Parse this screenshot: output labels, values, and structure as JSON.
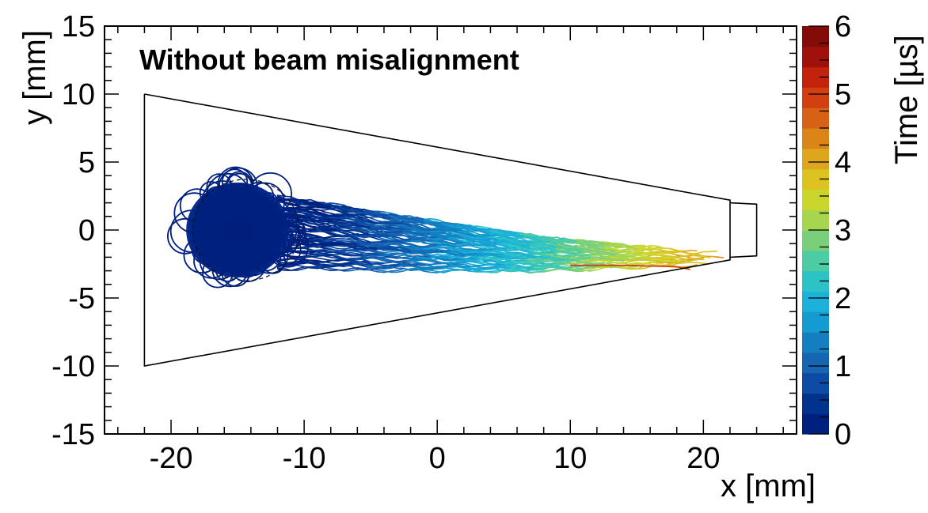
{
  "chart_data": {
    "type": "scatter",
    "title": "",
    "annotation": "Without beam misalignment",
    "xlabel": "x [mm]",
    "ylabel": "y [mm]",
    "colorbar_label": "Time [µs]",
    "xlim": [
      -25,
      27
    ],
    "ylim": [
      -15,
      15
    ],
    "zlim": [
      0,
      6
    ],
    "x_ticks": [
      -20,
      -10,
      0,
      10,
      20
    ],
    "x_tick_labels": [
      "-20",
      "-10",
      "0",
      "10",
      "20"
    ],
    "y_ticks": [
      -15,
      -10,
      -5,
      0,
      5,
      10,
      15
    ],
    "y_tick_labels": [
      "-15",
      "-10",
      "-5",
      "0",
      "5",
      "10",
      "15"
    ],
    "z_ticks": [
      0,
      1,
      2,
      3,
      4,
      5,
      6
    ],
    "z_tick_labels": [
      "0",
      "1",
      "2",
      "3",
      "4",
      "5",
      "6"
    ],
    "colormap": [
      "#00207f",
      "#00338e",
      "#0d4ba4",
      "#1565b2",
      "#137fc1",
      "#149bd0",
      "#1bb1d8",
      "#2dc3c6",
      "#4dcba3",
      "#7ad07a",
      "#a8d54e",
      "#cbd62c",
      "#dcc322",
      "#dda61c",
      "#db8519",
      "#d76215",
      "#d23f10",
      "#c3220d",
      "#a0110b",
      "#830b08"
    ],
    "outline": {
      "trapezoid": [
        [
          -22,
          10
        ],
        [
          22,
          2.2
        ],
        [
          22,
          -2.2
        ],
        [
          -22,
          -10
        ],
        [
          -22,
          10
        ]
      ],
      "end_cap": [
        [
          22,
          2
        ],
        [
          24,
          1.9
        ],
        [
          24,
          -1.9
        ],
        [
          22,
          -2
        ]
      ]
    },
    "beam_spot": {
      "center": [
        -15,
        0
      ],
      "radius_x": 4.2,
      "radius_y": 3.8,
      "time_us": 0.0
    },
    "trail": [
      {
        "x": -12,
        "y": -0.2,
        "width": 5.6,
        "time_us": 0.1
      },
      {
        "x": -8,
        "y": -0.5,
        "width": 5.0,
        "time_us": 0.4
      },
      {
        "x": -4,
        "y": -0.9,
        "width": 4.4,
        "time_us": 0.9
      },
      {
        "x": 0,
        "y": -1.2,
        "width": 3.8,
        "time_us": 1.4
      },
      {
        "x": 4,
        "y": -1.5,
        "width": 3.2,
        "time_us": 1.9
      },
      {
        "x": 8,
        "y": -1.8,
        "width": 2.6,
        "time_us": 2.4
      },
      {
        "x": 12,
        "y": -1.9,
        "width": 2.0,
        "time_us": 3.0
      },
      {
        "x": 16,
        "y": -2.0,
        "width": 1.5,
        "time_us": 3.5
      },
      {
        "x": 19,
        "y": -2.1,
        "width": 1.1,
        "time_us": 3.9
      },
      {
        "x": 21.8,
        "y": -2.1,
        "width": 0.7,
        "time_us": 4.2
      }
    ],
    "stray_track": {
      "x": [
        10,
        14,
        18,
        19
      ],
      "y": [
        -2.6,
        -2.6,
        -2.7,
        -2.9
      ],
      "time_us": 5.0
    },
    "grid": false,
    "legend": "colorbar-right"
  }
}
